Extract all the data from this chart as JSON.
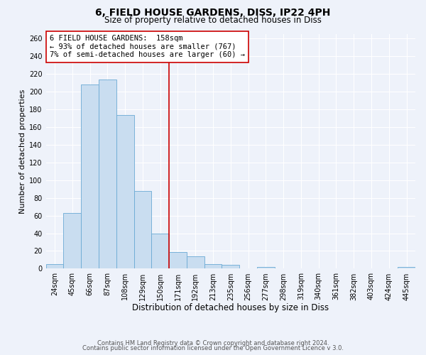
{
  "title": "6, FIELD HOUSE GARDENS, DISS, IP22 4PH",
  "subtitle": "Size of property relative to detached houses in Diss",
  "xlabel": "Distribution of detached houses by size in Diss",
  "ylabel": "Number of detached properties",
  "bar_color": "#c9ddf0",
  "bar_edge_color": "#6aaad4",
  "bin_labels": [
    "24sqm",
    "45sqm",
    "66sqm",
    "87sqm",
    "108sqm",
    "129sqm",
    "150sqm",
    "171sqm",
    "192sqm",
    "213sqm",
    "235sqm",
    "256sqm",
    "277sqm",
    "298sqm",
    "319sqm",
    "340sqm",
    "361sqm",
    "382sqm",
    "403sqm",
    "424sqm",
    "445sqm"
  ],
  "bar_heights": [
    5,
    63,
    208,
    213,
    173,
    88,
    40,
    19,
    14,
    5,
    4,
    0,
    2,
    0,
    0,
    0,
    0,
    0,
    0,
    0,
    2
  ],
  "ylim": [
    0,
    265
  ],
  "yticks": [
    0,
    20,
    40,
    60,
    80,
    100,
    120,
    140,
    160,
    180,
    200,
    220,
    240,
    260
  ],
  "vline_color": "#cc0000",
  "annotation_text": "6 FIELD HOUSE GARDENS:  158sqm\n← 93% of detached houses are smaller (767)\n7% of semi-detached houses are larger (60) →",
  "annotation_box_color": "#ffffff",
  "annotation_box_edge": "#cc0000",
  "footer1": "Contains HM Land Registry data © Crown copyright and database right 2024.",
  "footer2": "Contains public sector information licensed under the Open Government Licence v 3.0.",
  "background_color": "#eef2fa",
  "grid_color": "#ffffff",
  "title_fontsize": 10,
  "subtitle_fontsize": 8.5,
  "tick_fontsize": 7,
  "xlabel_fontsize": 8.5,
  "ylabel_fontsize": 8,
  "annotation_fontsize": 7.5,
  "footer_fontsize": 6,
  "footer_color": "#555555"
}
